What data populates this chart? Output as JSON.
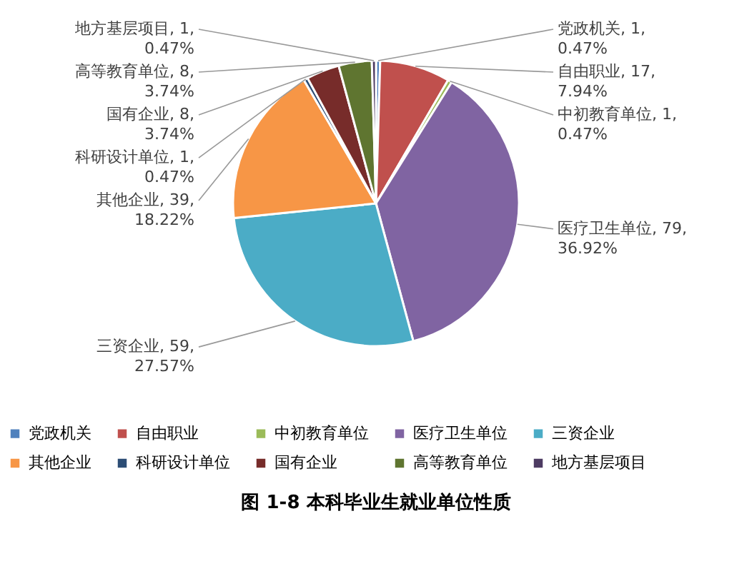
{
  "chart_data": {
    "type": "pie",
    "title": "图 1-8  本科毕业生就业单位性质",
    "categories": [
      "党政机关",
      "自由职业",
      "中初教育单位",
      "医疗卫生单位",
      "三资企业",
      "其他企业",
      "科研设计单位",
      "国有企业",
      "高等教育单位",
      "地方基层项目"
    ],
    "values": [
      1,
      17,
      1,
      79,
      59,
      39,
      1,
      8,
      8,
      1
    ],
    "colors": [
      "#4f81bd",
      "#c0504d",
      "#9bbb59",
      "#8064a2",
      "#4bacc6",
      "#f79646",
      "#2c4d75",
      "#772c2a",
      "#5f7530",
      "#4d3b62"
    ],
    "value_labels": [
      "党政机关, 1,\n0.47%",
      "自由职业, 17,\n7.94%",
      "中初教育单位, 1,\n0.47%",
      "医疗卫生单位, 79,\n36.92%",
      "三资企业, 59,\n27.57%",
      "其他企业, 39,\n18.22%",
      "科研设计单位, 1,\n0.47%",
      "国有企业, 8,\n3.74%",
      "高等教育单位, 8,\n3.74%",
      "地方基层项目, 1,\n0.47%"
    ],
    "legend": "bottom"
  }
}
